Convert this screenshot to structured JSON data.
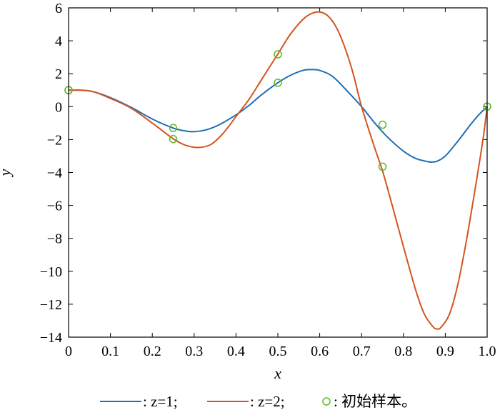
{
  "chart_data": {
    "type": "line",
    "title": "",
    "xlabel": "x",
    "ylabel": "y",
    "xlim": [
      0,
      1
    ],
    "ylim": [
      -14,
      6
    ],
    "xticks": [
      0,
      0.1,
      0.2,
      0.3,
      0.4,
      0.5,
      0.6,
      0.7,
      0.8,
      0.9,
      1.0
    ],
    "xtick_labels": [
      "0",
      "0.1",
      "0.2",
      "0.3",
      "0.4",
      "0.5",
      "0.6",
      "0.7",
      "0.8",
      "0.9",
      "1.0"
    ],
    "yticks": [
      6,
      4,
      2,
      0,
      -2,
      -4,
      -6,
      -8,
      -10,
      -12,
      -14
    ],
    "ytick_labels": [
      "6",
      "4",
      "2",
      "0",
      "−2",
      "−4",
      "−6",
      "−8",
      "−10",
      "−12",
      "−14"
    ],
    "grid": false,
    "legend_position": "bottom",
    "series": [
      {
        "name": ": z=1;",
        "color": "#1f6fb5",
        "x": [
          0,
          0.03,
          0.06,
          0.1,
          0.15,
          0.2,
          0.25,
          0.28,
          0.3,
          0.33,
          0.36,
          0.4,
          0.43,
          0.46,
          0.5,
          0.53,
          0.56,
          0.58,
          0.6,
          0.63,
          0.66,
          0.7,
          0.73,
          0.76,
          0.8,
          0.83,
          0.86,
          0.87,
          0.88,
          0.9,
          0.93,
          0.96,
          0.98,
          1.0
        ],
        "y": [
          1.0,
          1.0,
          0.9,
          0.55,
          -0.05,
          -0.75,
          -1.3,
          -1.48,
          -1.52,
          -1.4,
          -1.1,
          -0.5,
          0.05,
          0.7,
          1.45,
          1.9,
          2.2,
          2.25,
          2.2,
          1.85,
          1.1,
          0.0,
          -0.95,
          -1.8,
          -2.7,
          -3.15,
          -3.35,
          -3.36,
          -3.32,
          -3.0,
          -2.1,
          -1.1,
          -0.5,
          0.0
        ]
      },
      {
        "name": ": z=2;",
        "color": "#d4551f",
        "x": [
          0,
          0.03,
          0.06,
          0.1,
          0.15,
          0.2,
          0.25,
          0.28,
          0.31,
          0.34,
          0.37,
          0.4,
          0.43,
          0.46,
          0.5,
          0.53,
          0.56,
          0.58,
          0.6,
          0.62,
          0.64,
          0.66,
          0.68,
          0.7,
          0.73,
          0.75,
          0.77,
          0.8,
          0.83,
          0.85,
          0.87,
          0.88,
          0.89,
          0.91,
          0.93,
          0.95,
          0.97,
          0.99,
          1.0
        ],
        "y": [
          1.0,
          1.0,
          0.9,
          0.5,
          -0.1,
          -1.0,
          -1.95,
          -2.35,
          -2.48,
          -2.3,
          -1.6,
          -0.6,
          0.4,
          1.6,
          3.2,
          4.4,
          5.3,
          5.65,
          5.75,
          5.5,
          4.8,
          3.6,
          2.0,
          0.0,
          -2.4,
          -3.9,
          -5.7,
          -8.5,
          -11.2,
          -12.6,
          -13.35,
          -13.5,
          -13.4,
          -12.6,
          -10.8,
          -8.2,
          -5.2,
          -2.0,
          0.0
        ]
      }
    ],
    "samples": {
      "name": ": 初始样本。",
      "color": "#5cb82a",
      "x": [
        0,
        0,
        0.25,
        0.25,
        0.5,
        0.5,
        0.75,
        0.75,
        1.0,
        1.0
      ],
      "y": [
        1.0,
        1.0,
        -1.3,
        -1.97,
        1.45,
        3.18,
        -1.1,
        -3.65,
        0.0,
        0.0
      ]
    }
  }
}
